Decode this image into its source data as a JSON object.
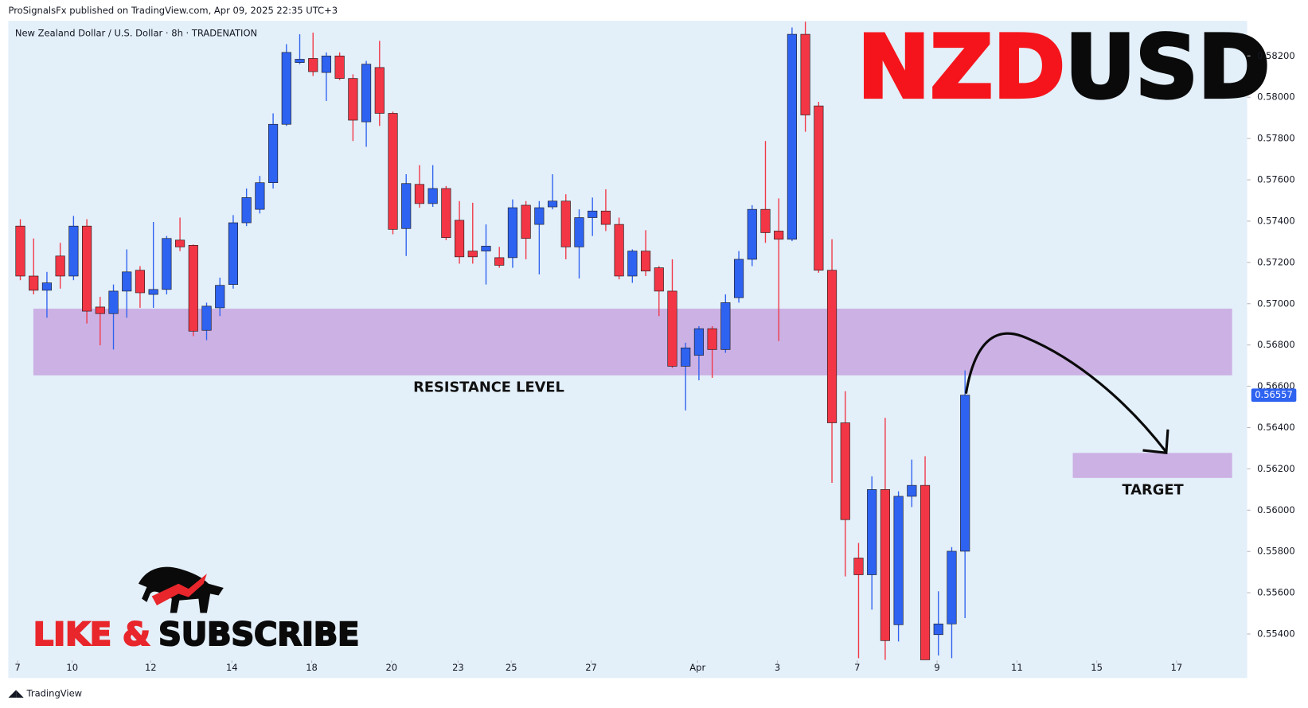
{
  "header": "ProSignalsFx published on TradingView.com, Apr 09, 2025 22:35 UTC+3",
  "footer": "TradingView",
  "headline": [
    {
      "text": "NZD",
      "color": "#f5141b"
    },
    {
      "text": "USD",
      "color": "#0a0a0a"
    }
  ],
  "cta": [
    {
      "text": "LIKE &",
      "color": "#e8262b"
    },
    {
      "text": "SUBSCRIBE",
      "color": "#0a0a0a"
    }
  ],
  "chart_data": {
    "type": "candlestick",
    "subtitle": "New Zealand Dollar / U.S. Dollar · 8h · TRADENATION",
    "up_color": "#2e62f0",
    "down_color": "#f23645",
    "open": [
      0.57376,
      0.57134,
      0.57065,
      0.57231,
      0.57134,
      0.57376,
      0.56984,
      0.56952,
      0.57061,
      0.57162,
      0.57045,
      0.57069,
      0.57308,
      0.57283,
      0.56871,
      0.5698,
      0.57093,
      0.57392,
      0.57457,
      0.57586,
      0.57869,
      0.58168,
      0.58188,
      0.5812,
      0.582,
      0.58091,
      0.57881,
      0.58144,
      0.57922,
      0.57364,
      0.57578,
      0.57485,
      0.57558,
      0.57404,
      0.57255,
      0.57255,
      0.57223,
      0.57223,
      0.57477,
      0.57384,
      0.57469,
      0.57497,
      0.57275,
      0.57417,
      0.57449,
      0.57384,
      0.57134,
      0.57255,
      0.57174,
      0.57061,
      0.56697,
      0.5675,
      0.56879,
      0.56778,
      0.57029,
      0.57215,
      0.57457,
      0.57352,
      0.57312,
      0.58305,
      0.57958,
      0.57162,
      0.56423,
      0.55768,
      0.55687,
      0.561,
      0.55445,
      0.56067,
      0.5612,
      0.55397,
      0.55449,
      0.55801
    ],
    "high": [
      0.57409,
      0.57316,
      0.57154,
      0.57295,
      0.57425,
      0.57409,
      0.57033,
      0.57093,
      0.57263,
      0.57182,
      0.57396,
      0.57328,
      0.57417,
      0.57287,
      0.57005,
      0.57126,
      0.57429,
      0.57558,
      0.57619,
      0.57922,
      0.58257,
      0.58305,
      0.58313,
      0.58217,
      0.58217,
      0.58111,
      0.58176,
      0.58273,
      0.5793,
      0.57627,
      0.57671,
      0.57671,
      0.5757,
      0.57497,
      0.57489,
      0.57384,
      0.57275,
      0.57505,
      0.57497,
      0.57497,
      0.57627,
      0.5753,
      0.57457,
      0.57514,
      0.57554,
      0.57417,
      0.57263,
      0.57356,
      0.57182,
      0.57215,
      0.56811,
      0.56891,
      0.56891,
      0.57045,
      0.57255,
      0.57477,
      0.57788,
      0.5751,
      0.58338,
      0.58366,
      0.57978,
      0.57312,
      0.56576,
      0.55841,
      0.56164,
      0.56447,
      0.56091,
      0.56245,
      0.56261,
      0.55607,
      0.55821,
      0.56677
    ],
    "low": [
      0.57114,
      0.57045,
      0.56932,
      0.57073,
      0.57114,
      0.56904,
      0.56798,
      0.56778,
      0.56932,
      0.5698,
      0.5698,
      0.57045,
      0.57255,
      0.56843,
      0.56823,
      0.5694,
      0.57073,
      0.57376,
      0.57437,
      0.57558,
      0.57861,
      0.5816,
      0.58103,
      0.57982,
      0.58083,
      0.57788,
      0.5776,
      0.57861,
      0.57336,
      0.57231,
      0.57465,
      0.57469,
      0.57308,
      0.57194,
      0.57194,
      0.57093,
      0.57174,
      0.57174,
      0.57215,
      0.57142,
      0.57457,
      0.57215,
      0.57122,
      0.57328,
      0.57352,
      0.57118,
      0.57101,
      0.57134,
      0.5694,
      0.56689,
      0.56483,
      0.56629,
      0.56641,
      0.56762,
      0.57005,
      0.57182,
      0.57295,
      0.56819,
      0.57303,
      0.57833,
      0.5715,
      0.56132,
      0.55679,
      0.55283,
      0.55518,
      0.55275,
      0.55364,
      0.56015,
      0.55275,
      0.55296,
      0.55283,
      0.55477
    ],
    "close": [
      0.57134,
      0.57065,
      0.57101,
      0.57134,
      0.57376,
      0.56964,
      0.56952,
      0.57061,
      0.57154,
      0.57053,
      0.57069,
      0.57316,
      0.57275,
      0.56867,
      0.56988,
      0.57089,
      0.57392,
      0.57514,
      0.57586,
      0.57869,
      0.58217,
      0.58184,
      0.58124,
      0.582,
      0.58091,
      0.57889,
      0.5816,
      0.57922,
      0.5736,
      0.57582,
      0.57485,
      0.57558,
      0.5732,
      0.57227,
      0.57227,
      0.57279,
      0.57186,
      0.57465,
      0.57316,
      0.57465,
      0.57497,
      0.57275,
      0.57417,
      0.57449,
      0.57384,
      0.57134,
      0.57255,
      0.57158,
      0.57061,
      0.56697,
      0.56786,
      0.56879,
      0.56778,
      0.57005,
      0.57215,
      0.57457,
      0.57344,
      0.57312,
      0.58305,
      0.57914,
      0.57162,
      0.56423,
      0.55954,
      0.55687,
      0.561,
      0.55368,
      0.56067,
      0.5612,
      0.55275,
      0.55449,
      0.55801,
      0.56557
    ],
    "price_label": {
      "value": 0.56557,
      "label": "0.56557"
    },
    "xlim": [
      -0.9,
      92.2
    ],
    "xticks": [
      {
        "value": -0.2,
        "label": "7"
      },
      {
        "value": 3.9,
        "label": "10"
      },
      {
        "value": 9.8,
        "label": "12"
      },
      {
        "value": 15.9,
        "label": "14"
      },
      {
        "value": 21.9,
        "label": "18"
      },
      {
        "value": 27.9,
        "label": "20"
      },
      {
        "value": 32.9,
        "label": "23"
      },
      {
        "value": 36.9,
        "label": "25"
      },
      {
        "value": 42.9,
        "label": "27"
      },
      {
        "value": 50.9,
        "label": "Apr"
      },
      {
        "value": 56.9,
        "label": "3"
      },
      {
        "value": 62.9,
        "label": "7"
      },
      {
        "value": 68.9,
        "label": "9"
      },
      {
        "value": 74.9,
        "label": "11"
      },
      {
        "value": 80.9,
        "label": "15"
      },
      {
        "value": 86.9,
        "label": "17"
      }
    ],
    "ylim": [
      0.5528,
      0.5837
    ],
    "yticks": [
      {
        "value": 0.554,
        "label": "0.55400"
      },
      {
        "value": 0.556,
        "label": "0.55600"
      },
      {
        "value": 0.558,
        "label": "0.55800"
      },
      {
        "value": 0.56,
        "label": "0.56000"
      },
      {
        "value": 0.562,
        "label": "0.56200"
      },
      {
        "value": 0.564,
        "label": "0.56400"
      },
      {
        "value": 0.566,
        "label": "0.56600"
      },
      {
        "value": 0.568,
        "label": "0.56800"
      },
      {
        "value": 0.57,
        "label": "0.57000"
      },
      {
        "value": 0.572,
        "label": "0.57200"
      },
      {
        "value": 0.574,
        "label": "0.57400"
      },
      {
        "value": 0.576,
        "label": "0.57600"
      },
      {
        "value": 0.578,
        "label": "0.57800"
      },
      {
        "value": 0.58,
        "label": "0.58000"
      },
      {
        "value": 0.582,
        "label": "0.58200"
      }
    ],
    "zone_color": "#c8a6e0",
    "zones": [
      {
        "label": "RESISTANCE LEVEL",
        "ylim": [
          0.56653,
          0.56976
        ]
      },
      {
        "label": "TARGET",
        "ylim": [
          0.56156,
          0.56277
        ]
      }
    ]
  }
}
